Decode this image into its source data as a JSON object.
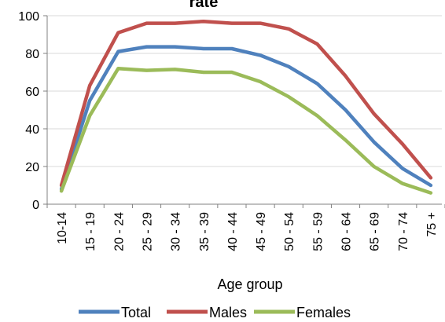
{
  "chart_data": {
    "type": "line",
    "title": "rate",
    "xlabel": "Age group",
    "ylabel": "",
    "ylim": [
      0,
      100
    ],
    "yticks": [
      0,
      20,
      40,
      60,
      80,
      100
    ],
    "grid": "horizontal",
    "legend_position": "bottom",
    "categories": [
      "10-14",
      "15 - 19",
      "20 - 24",
      "25 - 29",
      "30 - 34",
      "35 - 39",
      "40 - 44",
      "45 - 49",
      "50 - 54",
      "55 - 59",
      "60 - 64",
      "65 - 69",
      "70 - 74",
      "75 +"
    ],
    "series": [
      {
        "name": "Total",
        "color": "#4f81bd",
        "values": [
          8,
          55,
          81,
          83.5,
          83.5,
          82.5,
          82.5,
          79,
          73,
          64,
          50,
          33,
          19,
          10
        ]
      },
      {
        "name": "Males",
        "color": "#c0504d",
        "values": [
          10,
          63,
          91,
          96,
          96,
          97,
          96,
          96,
          93,
          85,
          68,
          48,
          32,
          14
        ]
      },
      {
        "name": "Females",
        "color": "#9bbb59",
        "values": [
          7,
          47,
          72,
          71,
          71.5,
          70,
          70,
          65,
          57,
          47,
          34,
          20,
          11,
          6
        ]
      }
    ]
  }
}
